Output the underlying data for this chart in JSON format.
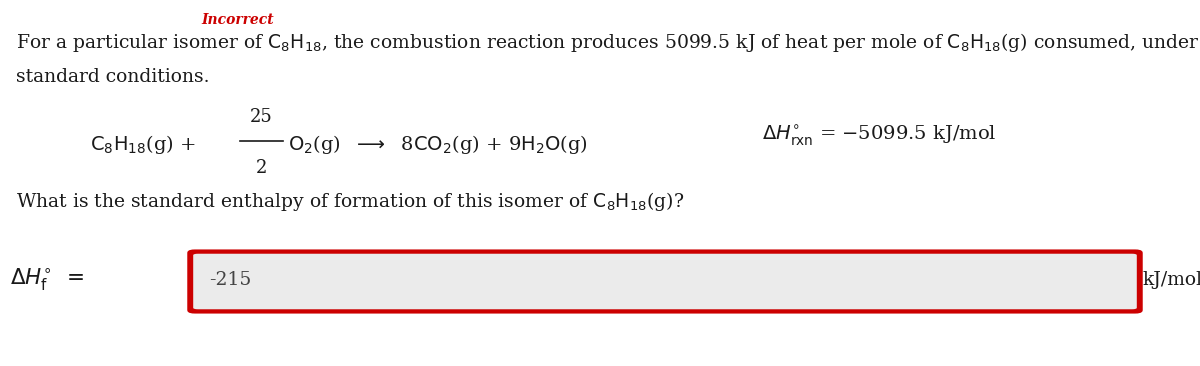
{
  "bg_color": "#ffffff",
  "text_color": "#1a1a1a",
  "red_color": "#cc0000",
  "box_bg": "#ebebeb",
  "answer_value": "-215",
  "answer_unit": "kJ/mol",
  "incorrect_text": "Incorrect",
  "line1": "For a particular isomer of $\\mathrm{C_8H_{18}}$, the combustion reaction produces 5099.5 kJ of heat per mole of $\\mathrm{C_8H_{18}}$(g) consumed, under",
  "line2": "standard conditions.",
  "question": "What is the standard enthalpy of formation of this isomer of $\\mathrm{C_8H_{18}}$(g)?",
  "eq_left": "$\\mathrm{C_8H_{18}}$(g) + ",
  "eq_25": "25",
  "eq_2": "2",
  "eq_right": "$\\mathrm{O_2}$(g)  $\\longrightarrow$  8$\\mathrm{CO_2}$(g) + 9$\\mathrm{H_2O}$(g)",
  "eq_dH": "$\\Delta H^{\\circ}_{\\mathrm{rxn}}$ = −5099.5 kJ/mol",
  "label_dHf": "$\\Delta H^{\\circ}_{\\mathrm{f}}$",
  "fs_main": 13.5,
  "fs_eq": 14,
  "fs_answer": 13.5,
  "fs_incorrect": 10
}
